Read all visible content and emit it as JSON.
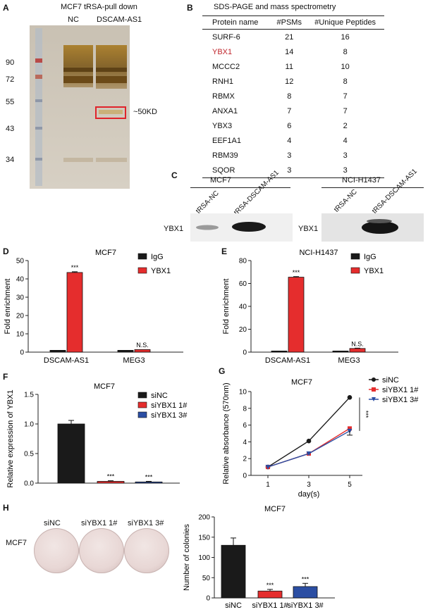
{
  "panel_labels": {
    "a": "A",
    "b": "B",
    "c": "C",
    "d": "D",
    "e": "E",
    "f": "F",
    "g": "G",
    "h": "H"
  },
  "panel_a": {
    "title": "MCF7 tRSA-pull down",
    "lane_labels": [
      "NC",
      "DSCAM-AS1"
    ],
    "markers": [
      "90",
      "72",
      "55",
      "43",
      "34"
    ],
    "band_label": "~50KD"
  },
  "panel_b": {
    "title": "SDS-PAGE and mass spectrometry",
    "headers": [
      "Protein name",
      "#PSMs",
      "#Unique Peptides"
    ],
    "rows": [
      [
        "SURF-6",
        "21",
        "16"
      ],
      [
        "YBX1",
        "14",
        "8"
      ],
      [
        "MCCC2",
        "11",
        "10"
      ],
      [
        "RNH1",
        "12",
        "8"
      ],
      [
        "RBMX",
        "8",
        "7"
      ],
      [
        "ANXA1",
        "7",
        "7"
      ],
      [
        "YBX3",
        "6",
        "2"
      ],
      [
        "EEF1A1",
        "4",
        "4"
      ],
      [
        "RBM39",
        "3",
        "3"
      ],
      [
        "SQOR",
        "3",
        "3"
      ]
    ],
    "highlight_row": 1,
    "highlight_color": "#c0272d"
  },
  "panel_c": {
    "left": {
      "cell": "MCF7",
      "lanes": [
        "tRSA-NC",
        "tRSA-DSCAM-AS1"
      ],
      "row_label": "YBX1"
    },
    "right": {
      "cell": "NCI-H1437",
      "lanes": [
        "tRSA-NC",
        "tRSA-DSCAM-AS1"
      ],
      "row_label": "YBX1"
    }
  },
  "colors": {
    "igg": "#1a1a1a",
    "ybx1": "#e52d2d",
    "sinc": "#1a1a1a",
    "si1": "#e52d2d",
    "si3": "#2b4ea3"
  },
  "chart_data": [
    {
      "id": "D",
      "type": "bar",
      "title": "MCF7",
      "categories": [
        "DSCAM-AS1",
        "MEG3"
      ],
      "series": [
        {
          "name": "IgG",
          "values": [
            1,
            1
          ]
        },
        {
          "name": "YBX1",
          "values": [
            43.5,
            1.4
          ]
        }
      ],
      "errors": [
        [
          0.1,
          0.1
        ],
        [
          0.4,
          0.2
        ]
      ],
      "ylabel": "Fold enrichment",
      "ylim": [
        0,
        50
      ],
      "yticks": [
        "0",
        "10",
        "20",
        "30",
        "40",
        "50"
      ],
      "annotations": [
        "***",
        "N.S."
      ]
    },
    {
      "id": "E",
      "type": "bar",
      "title": "NCI-H1437",
      "categories": [
        "DSCAM-AS1",
        "MEG3"
      ],
      "series": [
        {
          "name": "IgG",
          "values": [
            1,
            1
          ]
        },
        {
          "name": "YBX1",
          "values": [
            65.5,
            3.2
          ]
        }
      ],
      "errors": [
        [
          0.1,
          0.1
        ],
        [
          0.5,
          0.3
        ]
      ],
      "ylabel": "Fold enrichment",
      "ylim": [
        0,
        80
      ],
      "yticks": [
        "0",
        "20",
        "40",
        "60",
        "80"
      ],
      "annotations": [
        "***",
        "N.S."
      ]
    },
    {
      "id": "F",
      "type": "bar",
      "title": "MCF7",
      "categories": [
        "siNC",
        "siYBX1 1#",
        "siYBX1 3#"
      ],
      "values": [
        1.0,
        0.03,
        0.02
      ],
      "errors": [
        0.06,
        0.01,
        0.01
      ],
      "ylabel": "Relative expression of YBX1",
      "ylim": [
        0,
        1.5
      ],
      "yticks": [
        "0.0",
        "0.5",
        "1.0",
        "1.5"
      ],
      "legend": [
        "siNC",
        "siYBX1 1#",
        "siYBX1 3#"
      ],
      "annotations": [
        "***",
        "***"
      ]
    },
    {
      "id": "G",
      "type": "line",
      "title": "MCF7",
      "x": [
        1,
        3,
        5
      ],
      "xticks": [
        "1",
        "3",
        "5"
      ],
      "xlabel": "day(s)",
      "series": [
        {
          "name": "siNC",
          "values": [
            1.0,
            4.1,
            9.3
          ]
        },
        {
          "name": "siYBX1 1#",
          "values": [
            1.0,
            2.6,
            5.6
          ]
        },
        {
          "name": "siYBX1 3#",
          "values": [
            1.0,
            2.6,
            5.3
          ]
        }
      ],
      "ylabel": "Relative absorbance (570nm)",
      "ylim": [
        0,
        10
      ],
      "yticks": [
        "0",
        "2",
        "4",
        "6",
        "8",
        "10"
      ],
      "annotation": "***"
    },
    {
      "id": "H",
      "type": "bar",
      "title": "MCF7",
      "categories": [
        "siNC",
        "siYBX1 1#",
        "siYBX1 3#"
      ],
      "values": [
        130,
        17,
        28
      ],
      "errors": [
        18,
        4,
        8
      ],
      "ylabel": "Number of colonies",
      "ylim": [
        0,
        200
      ],
      "yticks": [
        "0",
        "50",
        "100",
        "150",
        "200"
      ],
      "annotations": [
        "***",
        "***"
      ]
    }
  ],
  "panel_h_images": {
    "labels": [
      "siNC",
      "siYBX1 1#",
      "siYBX1 3#"
    ],
    "row_label": "MCF7"
  }
}
